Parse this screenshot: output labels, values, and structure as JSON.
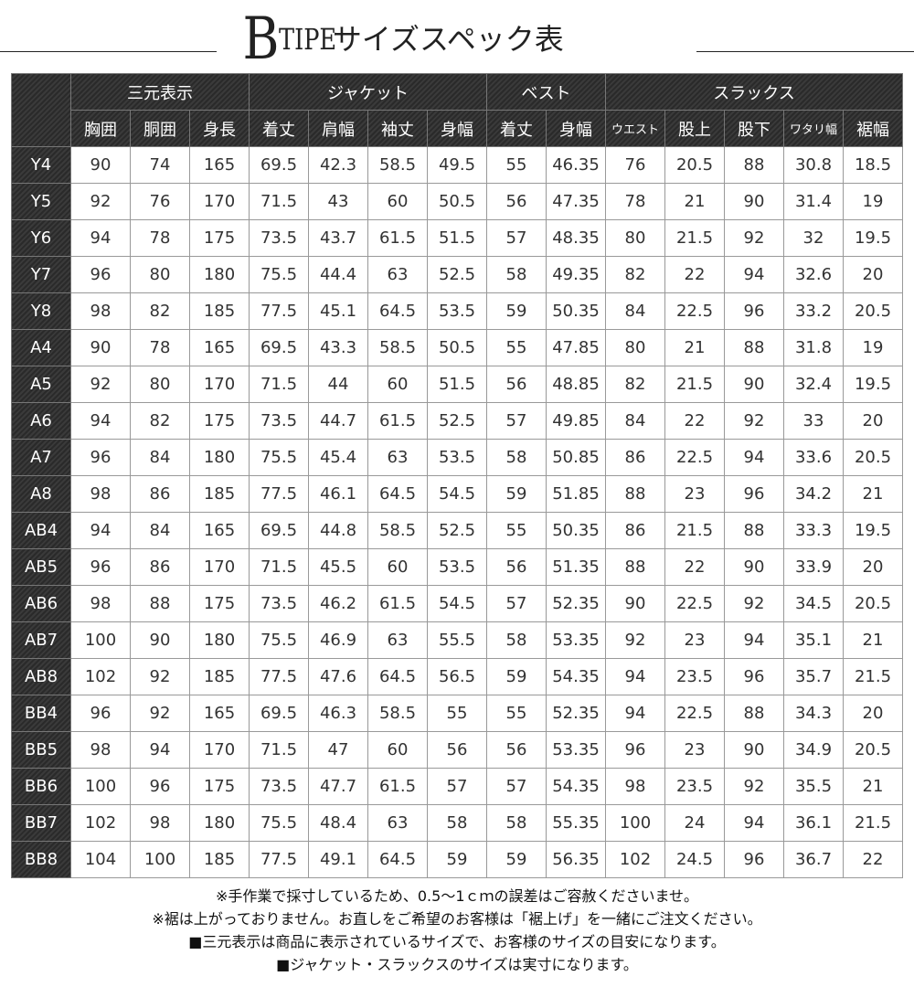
{
  "title": {
    "letter": "B",
    "word": "TIPE",
    "jp": "サイズスペック表"
  },
  "groups": [
    {
      "label": "三元表示",
      "span": 3
    },
    {
      "label": "ジャケット",
      "span": 4
    },
    {
      "label": "ベスト",
      "span": 2
    },
    {
      "label": "スラックス",
      "span": 5
    }
  ],
  "columns": [
    "胸囲",
    "胴囲",
    "身長",
    "着丈",
    "肩幅",
    "袖丈",
    "身幅",
    "着丈",
    "身幅",
    "ウエスト",
    "股上",
    "股下",
    "ワタリ幅",
    "裾幅"
  ],
  "rows": [
    [
      "Y4",
      "90",
      "74",
      "165",
      "69.5",
      "42.3",
      "58.5",
      "49.5",
      "55",
      "46.35",
      "76",
      "20.5",
      "88",
      "30.8",
      "18.5"
    ],
    [
      "Y5",
      "92",
      "76",
      "170",
      "71.5",
      "43",
      "60",
      "50.5",
      "56",
      "47.35",
      "78",
      "21",
      "90",
      "31.4",
      "19"
    ],
    [
      "Y6",
      "94",
      "78",
      "175",
      "73.5",
      "43.7",
      "61.5",
      "51.5",
      "57",
      "48.35",
      "80",
      "21.5",
      "92",
      "32",
      "19.5"
    ],
    [
      "Y7",
      "96",
      "80",
      "180",
      "75.5",
      "44.4",
      "63",
      "52.5",
      "58",
      "49.35",
      "82",
      "22",
      "94",
      "32.6",
      "20"
    ],
    [
      "Y8",
      "98",
      "82",
      "185",
      "77.5",
      "45.1",
      "64.5",
      "53.5",
      "59",
      "50.35",
      "84",
      "22.5",
      "96",
      "33.2",
      "20.5"
    ],
    [
      "A4",
      "90",
      "78",
      "165",
      "69.5",
      "43.3",
      "58.5",
      "50.5",
      "55",
      "47.85",
      "80",
      "21",
      "88",
      "31.8",
      "19"
    ],
    [
      "A5",
      "92",
      "80",
      "170",
      "71.5",
      "44",
      "60",
      "51.5",
      "56",
      "48.85",
      "82",
      "21.5",
      "90",
      "32.4",
      "19.5"
    ],
    [
      "A6",
      "94",
      "82",
      "175",
      "73.5",
      "44.7",
      "61.5",
      "52.5",
      "57",
      "49.85",
      "84",
      "22",
      "92",
      "33",
      "20"
    ],
    [
      "A7",
      "96",
      "84",
      "180",
      "75.5",
      "45.4",
      "63",
      "53.5",
      "58",
      "50.85",
      "86",
      "22.5",
      "94",
      "33.6",
      "20.5"
    ],
    [
      "A8",
      "98",
      "86",
      "185",
      "77.5",
      "46.1",
      "64.5",
      "54.5",
      "59",
      "51.85",
      "88",
      "23",
      "96",
      "34.2",
      "21"
    ],
    [
      "AB4",
      "94",
      "84",
      "165",
      "69.5",
      "44.8",
      "58.5",
      "52.5",
      "55",
      "50.35",
      "86",
      "21.5",
      "88",
      "33.3",
      "19.5"
    ],
    [
      "AB5",
      "96",
      "86",
      "170",
      "71.5",
      "45.5",
      "60",
      "53.5",
      "56",
      "51.35",
      "88",
      "22",
      "90",
      "33.9",
      "20"
    ],
    [
      "AB6",
      "98",
      "88",
      "175",
      "73.5",
      "46.2",
      "61.5",
      "54.5",
      "57",
      "52.35",
      "90",
      "22.5",
      "92",
      "34.5",
      "20.5"
    ],
    [
      "AB7",
      "100",
      "90",
      "180",
      "75.5",
      "46.9",
      "63",
      "55.5",
      "58",
      "53.35",
      "92",
      "23",
      "94",
      "35.1",
      "21"
    ],
    [
      "AB8",
      "102",
      "92",
      "185",
      "77.5",
      "47.6",
      "64.5",
      "56.5",
      "59",
      "54.35",
      "94",
      "23.5",
      "96",
      "35.7",
      "21.5"
    ],
    [
      "BB4",
      "96",
      "92",
      "165",
      "69.5",
      "46.3",
      "58.5",
      "55",
      "55",
      "52.35",
      "94",
      "22.5",
      "88",
      "34.3",
      "20"
    ],
    [
      "BB5",
      "98",
      "94",
      "170",
      "71.5",
      "47",
      "60",
      "56",
      "56",
      "53.35",
      "96",
      "23",
      "90",
      "34.9",
      "20.5"
    ],
    [
      "BB6",
      "100",
      "96",
      "175",
      "73.5",
      "47.7",
      "61.5",
      "57",
      "57",
      "54.35",
      "98",
      "23.5",
      "92",
      "35.5",
      "21"
    ],
    [
      "BB7",
      "102",
      "98",
      "180",
      "75.5",
      "48.4",
      "63",
      "58",
      "58",
      "55.35",
      "100",
      "24",
      "94",
      "36.1",
      "21.5"
    ],
    [
      "BB8",
      "104",
      "100",
      "185",
      "77.5",
      "49.1",
      "64.5",
      "59",
      "59",
      "56.35",
      "102",
      "24.5",
      "96",
      "36.7",
      "22"
    ]
  ],
  "notes": [
    "※手作業で採寸しているため、0.5～1ｃｍの誤差はご容赦くださいませ。",
    "※裾は上がっておりません。お直しをご希望のお客様は「裾上げ」を一緒にご注文ください。",
    "■三元表示は商品に表示されているサイズで、お客様のサイズの目安になります。",
    "■ジャケット・スラックスのサイズは実寸になります。"
  ]
}
